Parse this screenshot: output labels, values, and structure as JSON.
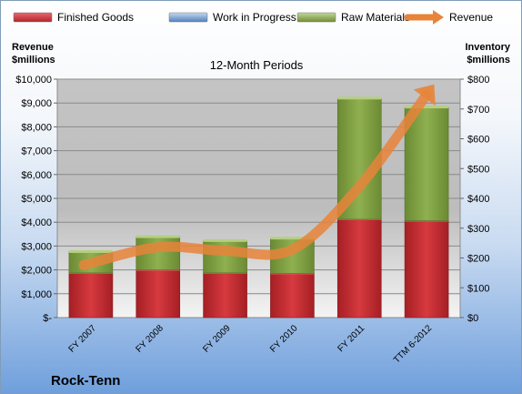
{
  "chart_data": {
    "type": "bar",
    "stacked": true,
    "title": "12-Month Periods",
    "company": "Rock-Tenn",
    "ylabel_left": [
      "Revenue",
      "$millions"
    ],
    "ylabel_right": [
      "Inventory",
      "$millions"
    ],
    "categories": [
      "FY 2007",
      "FY 2008",
      "FY 2009",
      "FY 2010",
      "FY 2011",
      "TTM 6-2012"
    ],
    "ylim_left": [
      0,
      10000
    ],
    "ylim_right": [
      0,
      800
    ],
    "left_ticks": [
      "$-",
      "$1,000",
      "$2,000",
      "$3,000",
      "$4,000",
      "$5,000",
      "$6,000",
      "$7,000",
      "$8,000",
      "$9,000",
      "$10,000"
    ],
    "right_ticks": [
      "$0",
      "$100",
      "$200",
      "$300",
      "$400",
      "$500",
      "$600",
      "$700",
      "$800"
    ],
    "series": [
      {
        "name": "Finished Goods",
        "axis": "right",
        "color": "#c0282d",
        "values": [
          150,
          160,
          150,
          148,
          330,
          325
        ]
      },
      {
        "name": "Work in Progress",
        "axis": "right",
        "color": "#4f81bd",
        "values": [
          0,
          0,
          0,
          0,
          0,
          0
        ]
      },
      {
        "name": "Raw Materials",
        "axis": "right",
        "color": "#77933c",
        "values": [
          70,
          110,
          107,
          117,
          405,
          380
        ]
      },
      {
        "name": "Revenue",
        "axis": "left",
        "type": "line-arrow",
        "color": "#e8843a",
        "values": [
          2200,
          2950,
          2800,
          2850,
          5500,
          9350
        ]
      }
    ],
    "grid": true,
    "legend": "top"
  }
}
